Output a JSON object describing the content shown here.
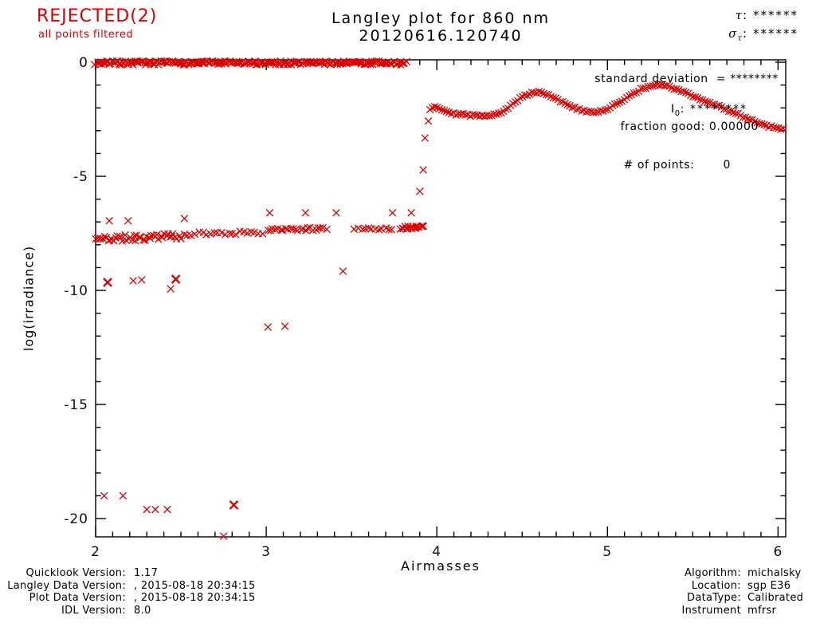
{
  "header": {
    "rejected_label": "REJECTED(2)",
    "rejected_sublabel": "all points filtered",
    "rejected_color": "#d80000"
  },
  "chart_data": {
    "type": "scatter",
    "title": "Langley plot for 860 nm",
    "subtitle": "20120616.120740",
    "xlabel": "Airmasses",
    "ylabel": "log(irradiance)",
    "xlim": [
      2.0,
      6.045
    ],
    "ylim": [
      -20.8,
      0.105
    ],
    "x_major_ticks": [
      2,
      3,
      4,
      5,
      6
    ],
    "x_minor_step": 0.1,
    "y_major_ticks": [
      0,
      -5,
      -10,
      -15,
      -20
    ],
    "y_minor_step": 1,
    "grid": false,
    "marker": "x",
    "marker_color": "#d80000",
    "axis_color": "#000000",
    "annotations": {
      "tau_symbol": "τ",
      "tau_sep": ":",
      "tau_value": "******",
      "sigma_symbol": "σ",
      "sigma_sub": "τ",
      "sigma_sep": ":",
      "sigma_value": "******",
      "std_dev": "standard deviation  = ********",
      "i0_symbol": "I",
      "i0_sub": "0",
      "i0_sep": ":",
      "i0_value": "********",
      "fraction_good": "fraction good: 0.00000",
      "n_points_label": "# of points:",
      "n_points_value": "0"
    },
    "series": {
      "bands": [
        {
          "name": "saturated-zero-band",
          "x_start": 2.0,
          "x_end": 3.82,
          "n": 240,
          "y_start": -0.03,
          "y_end": -0.03,
          "jitter": 0.08,
          "seed": 7
        },
        {
          "name": "low-band-a",
          "x_start": 2.0,
          "x_end": 2.5,
          "n": 48,
          "y_start": -7.75,
          "y_end": -7.62,
          "jitter": 0.14,
          "seed": 11
        },
        {
          "name": "low-band-b",
          "x_start": 2.52,
          "x_end": 2.98,
          "n": 22,
          "y_start": -7.52,
          "y_end": -7.46,
          "jitter": 0.08,
          "seed": 13
        },
        {
          "name": "low-band-c",
          "x_start": 3.01,
          "x_end": 3.35,
          "n": 24,
          "y_start": -7.33,
          "y_end": -7.3,
          "jitter": 0.07,
          "seed": 17
        },
        {
          "name": "low-band-d",
          "x_start": 3.52,
          "x_end": 3.74,
          "n": 12,
          "y_start": -7.3,
          "y_end": -7.3,
          "jitter": 0.05,
          "seed": 19
        },
        {
          "name": "low-band-e",
          "x_start": 3.79,
          "x_end": 3.92,
          "n": 18,
          "y_start": -7.26,
          "y_end": -7.22,
          "jitter": 0.06,
          "seed": 23
        }
      ],
      "curves": [
        {
          "name": "high-airmass-curve",
          "n": 150,
          "jitter": 0.045,
          "seed": 29,
          "control": [
            [
              3.96,
              -2.05
            ],
            [
              3.98,
              -1.92
            ],
            [
              4.0,
              -1.95
            ],
            [
              4.02,
              -2.05
            ],
            [
              4.05,
              -2.12
            ],
            [
              4.08,
              -2.2
            ],
            [
              4.12,
              -2.28
            ],
            [
              4.16,
              -2.3
            ],
            [
              4.2,
              -2.33
            ],
            [
              4.25,
              -2.35
            ],
            [
              4.3,
              -2.32
            ],
            [
              4.34,
              -2.28
            ],
            [
              4.38,
              -2.18
            ],
            [
              4.42,
              -2.0
            ],
            [
              4.46,
              -1.75
            ],
            [
              4.5,
              -1.52
            ],
            [
              4.54,
              -1.38
            ],
            [
              4.58,
              -1.3
            ],
            [
              4.62,
              -1.32
            ],
            [
              4.66,
              -1.45
            ],
            [
              4.7,
              -1.6
            ],
            [
              4.75,
              -1.8
            ],
            [
              4.8,
              -1.98
            ],
            [
              4.85,
              -2.12
            ],
            [
              4.9,
              -2.2
            ],
            [
              4.95,
              -2.18
            ],
            [
              5.0,
              -2.05
            ],
            [
              5.05,
              -1.85
            ],
            [
              5.1,
              -1.6
            ],
            [
              5.15,
              -1.38
            ],
            [
              5.2,
              -1.18
            ],
            [
              5.25,
              -1.05
            ],
            [
              5.3,
              -1.0
            ],
            [
              5.35,
              -1.05
            ],
            [
              5.4,
              -1.17
            ],
            [
              5.45,
              -1.32
            ],
            [
              5.5,
              -1.48
            ],
            [
              5.55,
              -1.63
            ],
            [
              5.6,
              -1.78
            ],
            [
              5.65,
              -1.92
            ],
            [
              5.7,
              -2.08
            ],
            [
              5.75,
              -2.23
            ],
            [
              5.8,
              -2.4
            ],
            [
              5.85,
              -2.55
            ],
            [
              5.9,
              -2.7
            ],
            [
              5.95,
              -2.82
            ],
            [
              6.0,
              -2.9
            ],
            [
              6.03,
              -2.93
            ]
          ]
        }
      ],
      "points": [
        [
          2.08,
          -6.95
        ],
        [
          2.19,
          -6.95
        ],
        [
          2.52,
          -6.85
        ],
        [
          3.02,
          -6.6
        ],
        [
          3.23,
          -6.6
        ],
        [
          3.41,
          -6.6
        ],
        [
          3.74,
          -6.6
        ],
        [
          3.85,
          -6.6
        ],
        [
          3.9,
          -5.66
        ],
        [
          3.92,
          -4.72
        ],
        [
          3.93,
          -3.32
        ],
        [
          3.95,
          -2.58
        ],
        [
          2.07,
          -9.65,
          "bold"
        ],
        [
          2.22,
          -9.58
        ],
        [
          2.27,
          -9.54
        ],
        [
          2.44,
          -9.93
        ],
        [
          2.47,
          -9.51,
          "bold"
        ],
        [
          3.45,
          -9.16
        ],
        [
          3.01,
          -11.61
        ],
        [
          3.11,
          -11.57
        ],
        [
          2.05,
          -19.0
        ],
        [
          2.16,
          -19.0
        ],
        [
          2.3,
          -19.6
        ],
        [
          2.35,
          -19.6
        ],
        [
          2.42,
          -19.6
        ],
        [
          2.81,
          -19.4,
          "bold"
        ],
        [
          2.75,
          -20.77
        ]
      ]
    }
  },
  "footer": {
    "left_rows": [
      {
        "label": "Quicklook Version:",
        "value": "1.17"
      },
      {
        "label": "Langley Data Version:",
        "value": ", 2015-08-18 20:34:15"
      },
      {
        "label": "Plot Data Version:",
        "value": ", 2015-08-18 20:34:15"
      },
      {
        "label": "IDL Version:",
        "value": "8.0"
      }
    ],
    "right_rows": [
      {
        "label": "Algorithm:",
        "value": "michalsky"
      },
      {
        "label": "Location:",
        "value": "sgp E36"
      },
      {
        "label": "DataType:",
        "value": "Calibrated"
      },
      {
        "label": "Instrument",
        "value": "mfrsr"
      }
    ]
  }
}
